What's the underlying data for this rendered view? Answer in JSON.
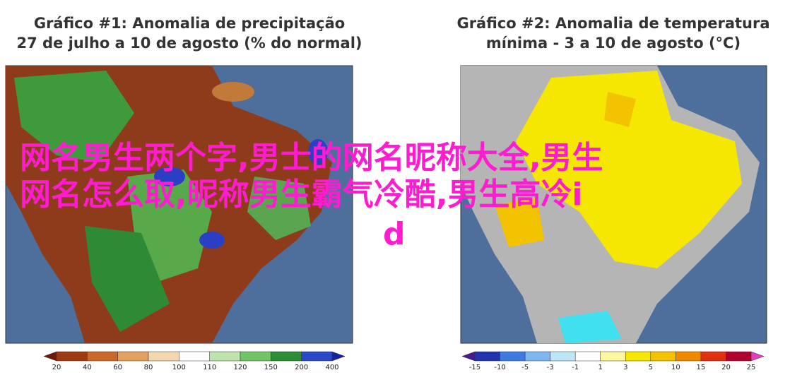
{
  "maps": [
    {
      "title_lines": [
        "Gráfico #1: Anomalia de precipitação",
        "27 de julho a 10 de agosto (% do normal)"
      ],
      "colorbar_ticks": [
        20,
        40,
        60,
        80,
        100,
        110,
        120,
        150,
        200,
        400
      ]
    },
    {
      "title_lines": [
        "Gráfico #2: Anomalia de temperatura",
        "mínima - 3 a 10 de agosto (°C)"
      ],
      "colorbar_ticks": [
        -15,
        -10,
        -5,
        -3,
        -1,
        1,
        3,
        5,
        10,
        15,
        20,
        25
      ]
    }
  ],
  "overlay": {
    "lines": [
      "网名男生两个字,男士的网名昵称大全,男生",
      "网名怎么取,昵称男生霸气冷酷,男生高冷i",
      "d"
    ]
  }
}
